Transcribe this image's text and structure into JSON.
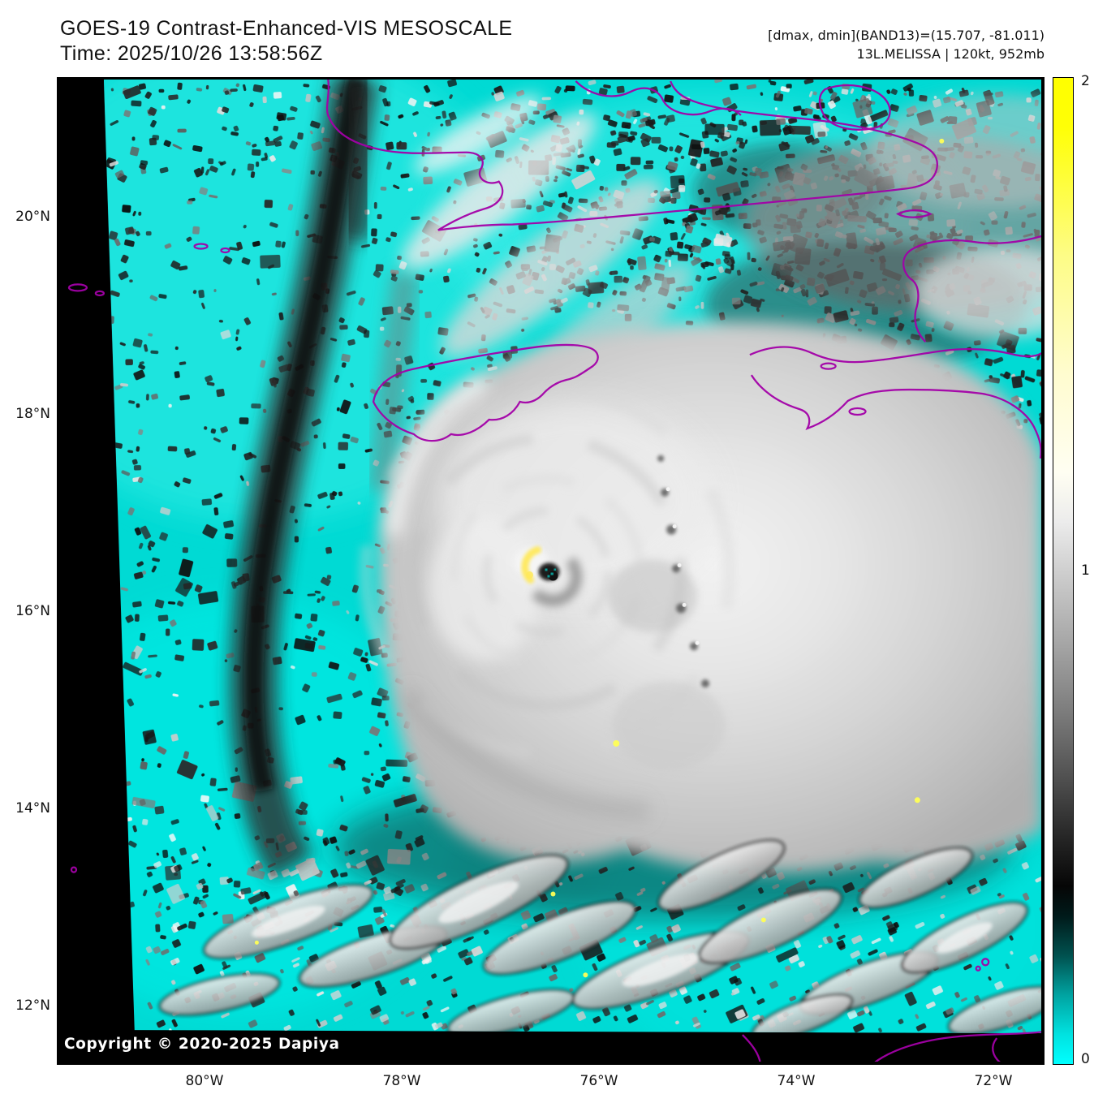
{
  "header": {
    "title_line1": "GOES-19 Contrast-Enhanced-VIS MESOSCALE",
    "title_line2": "Time: 2025/10/26 13:58:56Z",
    "info_line1": "[dmax, dmin](BAND13)=(15.707, -81.011)",
    "info_line2": "13L.MELISSA | 120kt, 952mb"
  },
  "map": {
    "copyright": "Copyright © 2020-2025 Dapiya",
    "colors": {
      "ocean_cyan": "#00DAD4",
      "no_data_black": "#000000",
      "coastline_purple": "#A300A8",
      "storm_cloud_white": "#F2F2F2",
      "enhancement_yellow": "#FFFF00"
    }
  },
  "axes": {
    "y_ticks": [
      "20°N",
      "18°N",
      "16°N",
      "14°N",
      "12°N"
    ],
    "x_ticks": [
      "80°W",
      "78°W",
      "76°W",
      "74°W",
      "72°W"
    ]
  },
  "colorbar": {
    "tick_top": "2",
    "tick_mid": "1",
    "tick_bottom": "0"
  }
}
